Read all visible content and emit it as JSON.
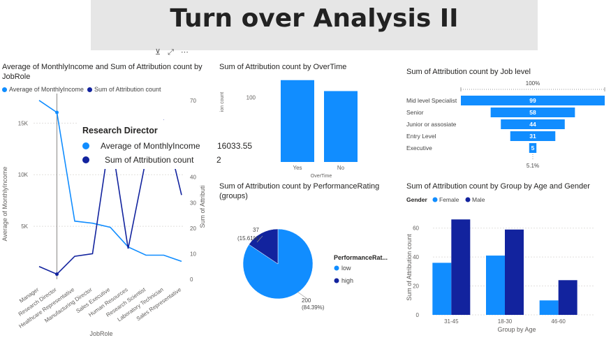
{
  "page": {
    "title": "Turn over Analysis II"
  },
  "colors": {
    "light": "#118DFF",
    "dark": "#12239E",
    "axis": "#605E5C",
    "grid": "#E1DFDD"
  },
  "tooltip": {
    "title": "Research Director",
    "rows": [
      {
        "label": "Average of MonthlyIncome",
        "value": "16033.55",
        "color": "#118DFF"
      },
      {
        "label": "Sum of Attribution count",
        "value": "2",
        "color": "#12239E"
      }
    ]
  },
  "chart_data": [
    {
      "id": "income-by-role",
      "type": "line",
      "title": "Average of MonthlyIncome and Sum of Attribution count by JobRole",
      "xlabel": "JobRole",
      "ylabel": "Average of MonthlyIncome",
      "y2label": "Sum of Attributi",
      "categories": [
        "Manager",
        "Research Director",
        "Healthcare Representative",
        "Manufacturing Director",
        "Sales Executive",
        "Human Resources",
        "Research Scientist",
        "Laboratory Technician",
        "Sales Representative"
      ],
      "ylim": [
        0,
        18000
      ],
      "y2lim": [
        0,
        70
      ],
      "yticks": [
        5000,
        10000,
        15000
      ],
      "ytick_labels": [
        "5K",
        "10K",
        "15K"
      ],
      "y2ticks": [
        0,
        10,
        20,
        30,
        40,
        50,
        60,
        70
      ],
      "legend_position": "top-left",
      "series": [
        {
          "name": "Average of MonthlyIncome",
          "axis": "left",
          "color": "#118DFF",
          "values": [
            17200,
            16033.55,
            5500,
            5300,
            4900,
            3000,
            2200,
            2200,
            1600
          ]
        },
        {
          "name": "Sum of Attribution count",
          "axis": "right",
          "color": "#12239E",
          "values": [
            5,
            2,
            9,
            10,
            57,
            12,
            47,
            62,
            33
          ]
        }
      ]
    },
    {
      "id": "overtime",
      "type": "bar",
      "title": "Sum of Attribution count by OverTime",
      "xlabel": "OverTime",
      "ylabel": "ion count",
      "categories": [
        "Yes",
        "No"
      ],
      "values": [
        127,
        110
      ],
      "yticks": [
        100
      ],
      "ylim": [
        0,
        130
      ],
      "color": "#118DFF"
    },
    {
      "id": "job-level",
      "type": "bar",
      "orientation": "funnel",
      "title": "Sum of Attribution count by Job level",
      "categories": [
        "Mid level Specialist",
        "Senior",
        "Junior or assosiate",
        "Entry Level",
        "Executive"
      ],
      "values": [
        99,
        58,
        44,
        31,
        5
      ],
      "top_label": "100%",
      "bottom_label": "5.1%",
      "color": "#118DFF"
    },
    {
      "id": "performance",
      "type": "pie",
      "title": "Sum of Attribution count by PerformanceRating (groups)",
      "legend_title": "PerformanceRat...",
      "slices": [
        {
          "name": "low",
          "value": 200,
          "pct_label": "(84.39%)",
          "color": "#118DFF"
        },
        {
          "name": "high",
          "value": 37,
          "pct_label": "(15.61%)",
          "color": "#12239E"
        }
      ],
      "legend_position": "right"
    },
    {
      "id": "age-gender",
      "type": "bar",
      "title": "Sum of Attribution count by Group by Age and Gender",
      "xlabel": "Group by Age",
      "ylabel": "Sum of Attribution count",
      "legend_title": "Gender",
      "categories": [
        "31-45",
        "18-30",
        "46-60"
      ],
      "ylim": [
        0,
        70
      ],
      "yticks": [
        0,
        20,
        40,
        60
      ],
      "legend_position": "top-left",
      "series": [
        {
          "name": "Female",
          "color": "#118DFF",
          "values": [
            36,
            41,
            10
          ]
        },
        {
          "name": "Male",
          "color": "#12239E",
          "values": [
            66,
            59,
            24
          ]
        }
      ]
    }
  ]
}
